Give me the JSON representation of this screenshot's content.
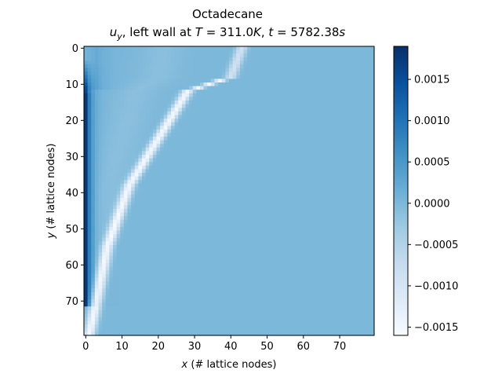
{
  "chart_data": {
    "type": "heatmap",
    "title_line1": "Octadecane",
    "title_line2": {
      "var": "u",
      "sub": "y",
      "mid": ", left wall at ",
      "T_sym": "T",
      "T_val": " = 311.0",
      "T_unit": "K",
      "sep": ", ",
      "t_sym": "t",
      "t_val": " = 5782.38",
      "t_unit": "s"
    },
    "xlabel": {
      "sym": "x",
      "text": " (# lattice nodes)"
    },
    "ylabel": {
      "sym": "y",
      "text": " (# lattice nodes)"
    },
    "xlim": [
      0,
      79
    ],
    "ylim": [
      0,
      79
    ],
    "y_inverted": true,
    "grid_size": [
      80,
      80
    ],
    "xticks": [
      0,
      10,
      20,
      30,
      40,
      50,
      60,
      70
    ],
    "yticks": [
      0,
      10,
      20,
      30,
      40,
      50,
      60,
      70
    ],
    "colormap": "Blues",
    "colormap_stops": [
      "#f7fbff",
      "#deebf7",
      "#c6dbef",
      "#9ecae1",
      "#6baed6",
      "#4292c6",
      "#2171b5",
      "#08519c",
      "#08306b"
    ],
    "colorbar": {
      "vmin": -0.0016,
      "vmax": 0.0019,
      "ticks": [
        -0.0015,
        -0.001,
        -0.0005,
        0.0,
        0.0005,
        0.001,
        0.0015
      ],
      "tick_labels": [
        "−0.0015",
        "−0.0010",
        "−0.0005",
        "0.0000",
        "0.0005",
        "0.0010",
        "0.0015"
      ]
    },
    "field_description": {
      "background_value": 0.0,
      "left_wall_peak": 0.0018,
      "interface_min": -0.0015,
      "interface_points": [
        [
          43,
          0
        ],
        [
          40,
          8
        ],
        [
          28,
          12
        ],
        [
          20,
          25
        ],
        [
          12,
          38
        ],
        [
          6,
          55
        ],
        [
          3,
          70
        ],
        [
          1,
          79
        ]
      ]
    }
  }
}
